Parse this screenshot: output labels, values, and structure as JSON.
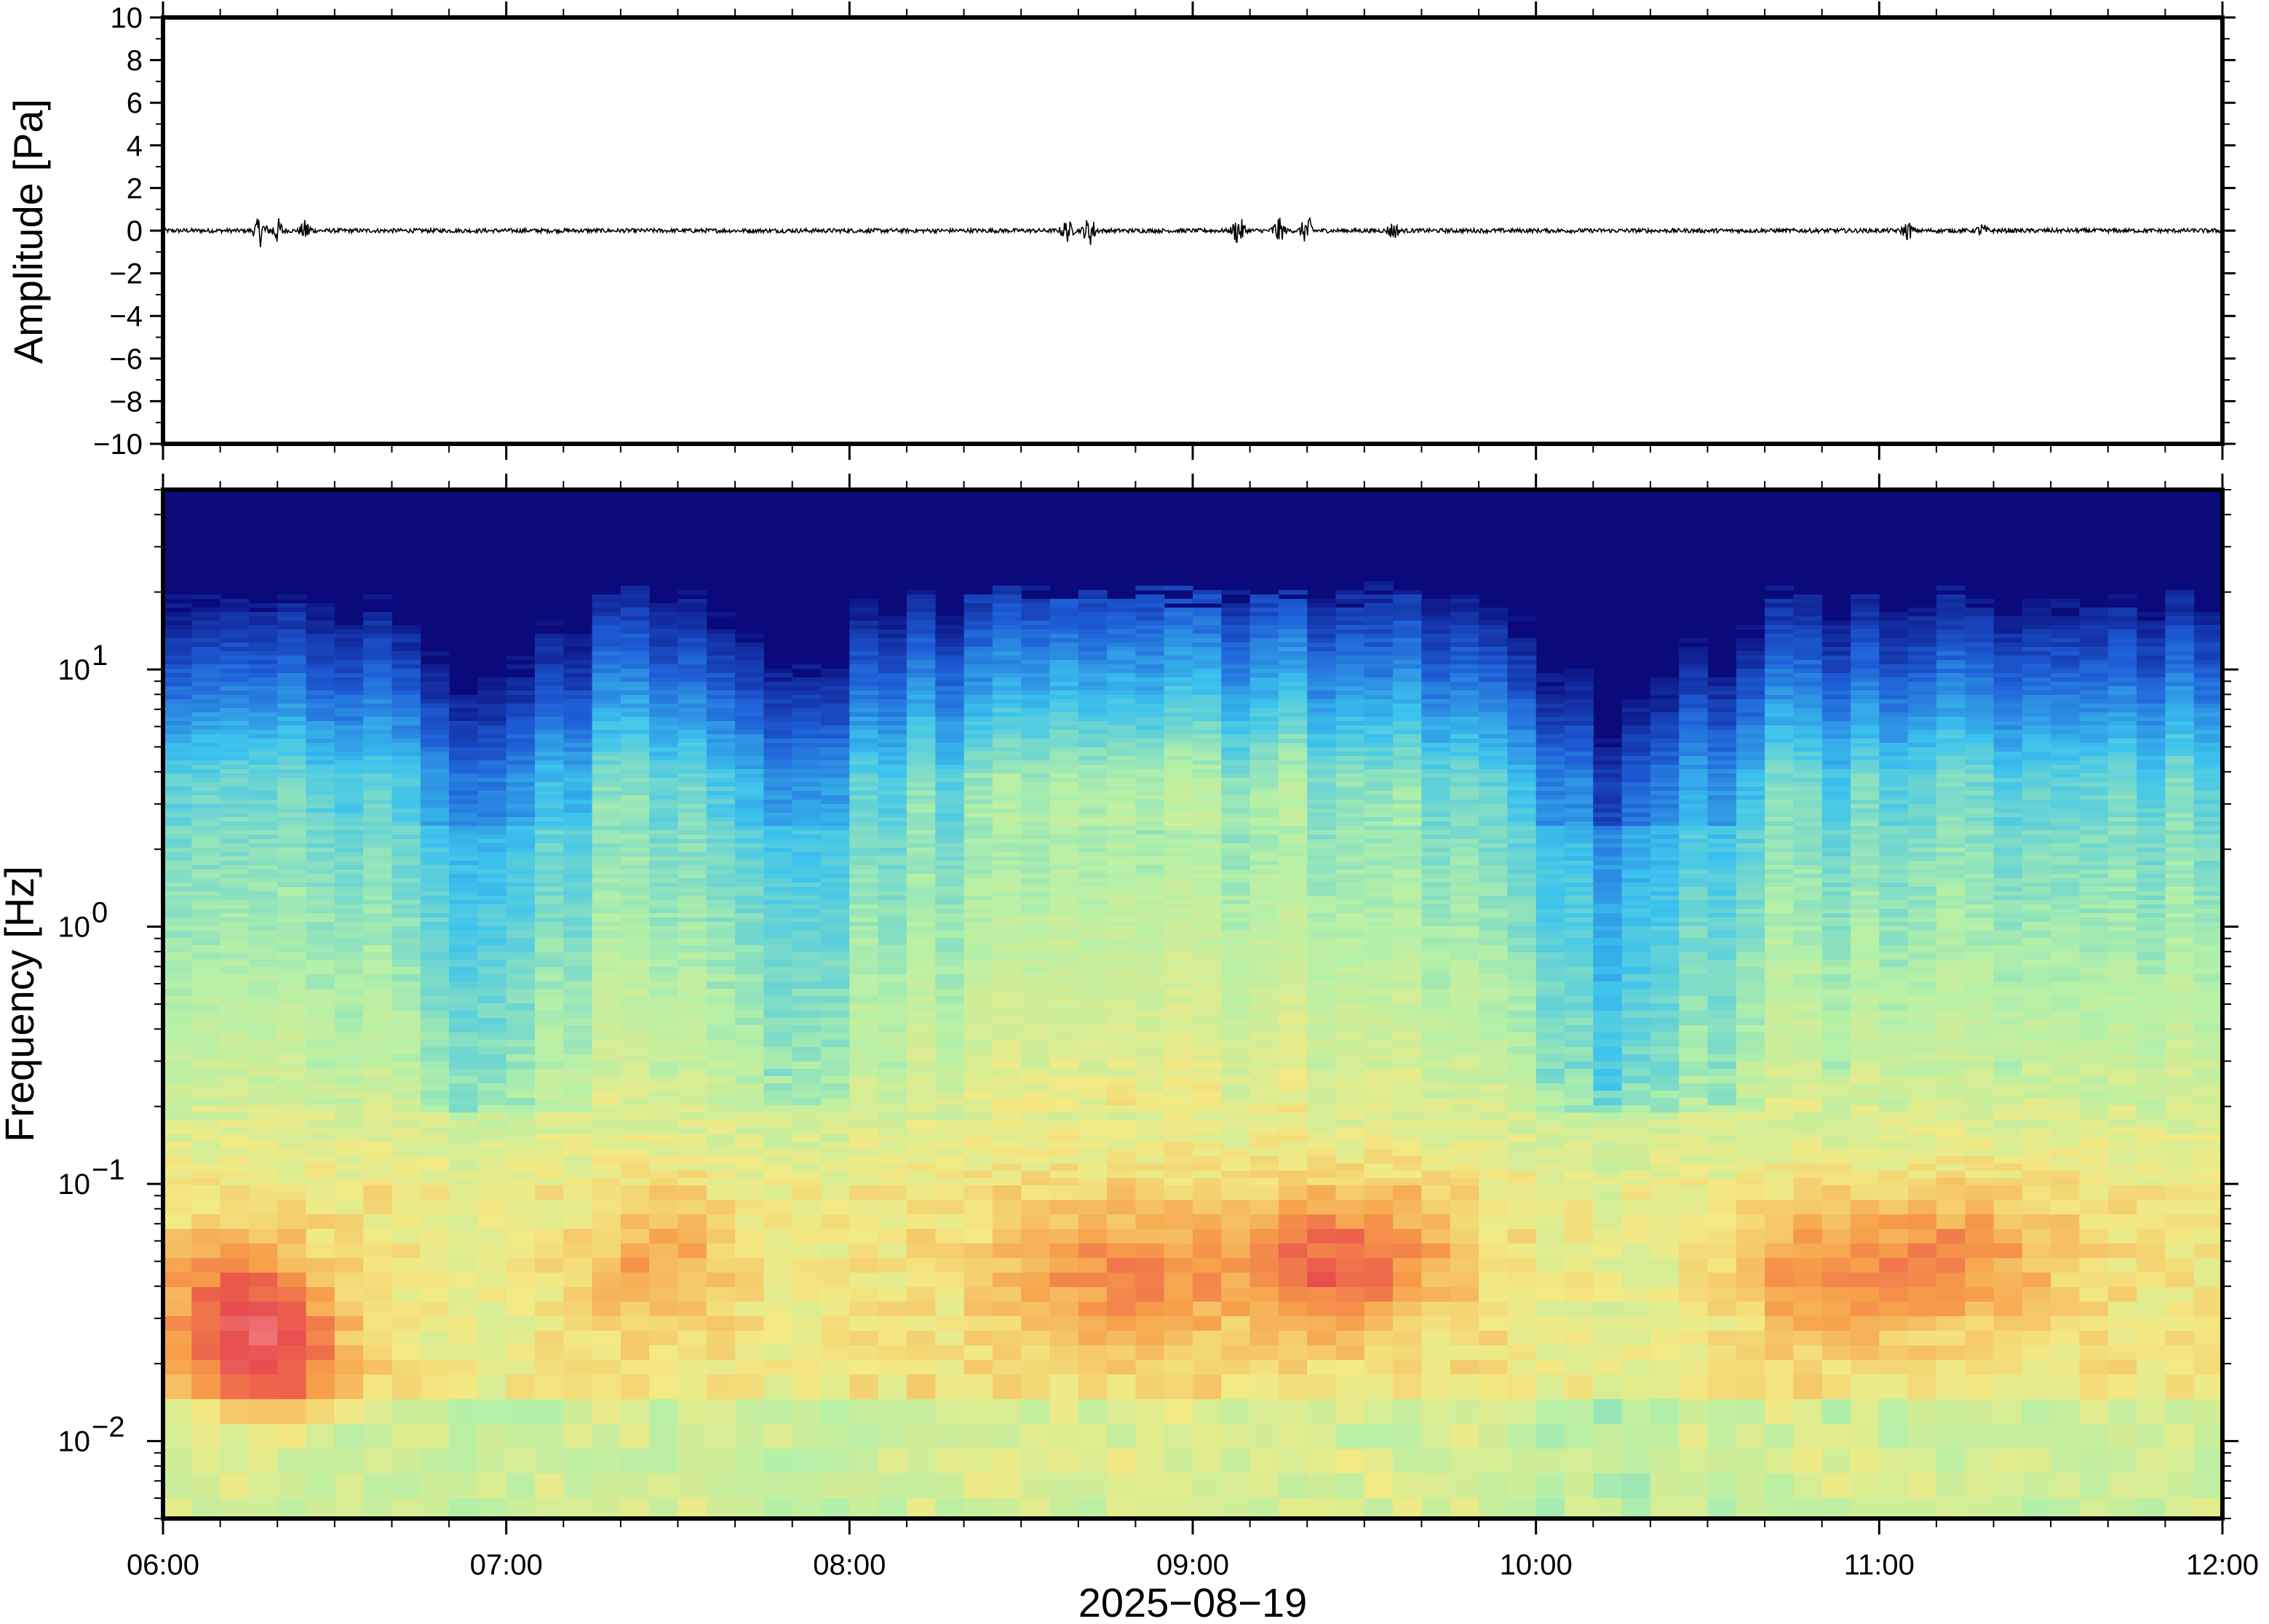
{
  "chart_data": [
    {
      "type": "line",
      "panel": "waveform",
      "ylabel": "Amplitude [Pa]",
      "ylim": [
        -10,
        10
      ],
      "y_ticks": [
        "10",
        "8",
        "6",
        "4",
        "2",
        "0",
        "−2",
        "−4",
        "−6",
        "−8",
        "−10"
      ],
      "y_tick_values": [
        10,
        8,
        6,
        4,
        2,
        0,
        -2,
        -4,
        -6,
        -8,
        -10
      ],
      "xlim": [
        "06:00",
        "12:00"
      ],
      "baseline_noise_pa": 0.1,
      "bursts": [
        {
          "time": "06:17",
          "amp": 0.8
        },
        {
          "time": "06:20",
          "amp": 0.7
        },
        {
          "time": "06:25",
          "amp": 0.6
        },
        {
          "time": "08:38",
          "amp": 0.6
        },
        {
          "time": "08:42",
          "amp": 0.8
        },
        {
          "time": "09:08",
          "amp": 0.8
        },
        {
          "time": "09:15",
          "amp": 0.7
        },
        {
          "time": "09:20",
          "amp": 0.8
        },
        {
          "time": "09:35",
          "amp": 0.5
        },
        {
          "time": "11:05",
          "amp": 0.5
        },
        {
          "time": "11:18",
          "amp": 0.4
        }
      ]
    },
    {
      "type": "heatmap",
      "panel": "spectrogram",
      "ylabel": "Frequency [Hz]",
      "yscale": "log",
      "ylim": [
        0.005,
        50
      ],
      "y_tick_values": [
        0.01,
        0.1,
        1,
        10
      ],
      "y_ticks": [
        {
          "base": "10",
          "exp": "−2"
        },
        {
          "base": "10",
          "exp": "−1"
        },
        {
          "base": "10",
          "exp": "0"
        },
        {
          "base": "10",
          "exp": "1"
        }
      ],
      "colormap": "jet",
      "colormap_colors": [
        "#0a0a7a",
        "#1e5fd8",
        "#3cc3ee",
        "#b4f0a8",
        "#f3ea84",
        "#f7a04a",
        "#e84c4c",
        "#f2858a"
      ],
      "xlim": [
        "06:00",
        "12:00"
      ]
    }
  ],
  "x_axis": {
    "tick_labels": [
      "06:00",
      "07:00",
      "08:00",
      "09:00",
      "10:00",
      "11:00",
      "12:00"
    ],
    "tick_hours": [
      6,
      7,
      8,
      9,
      10,
      11,
      12
    ],
    "xlabel": "2025−08−19"
  }
}
